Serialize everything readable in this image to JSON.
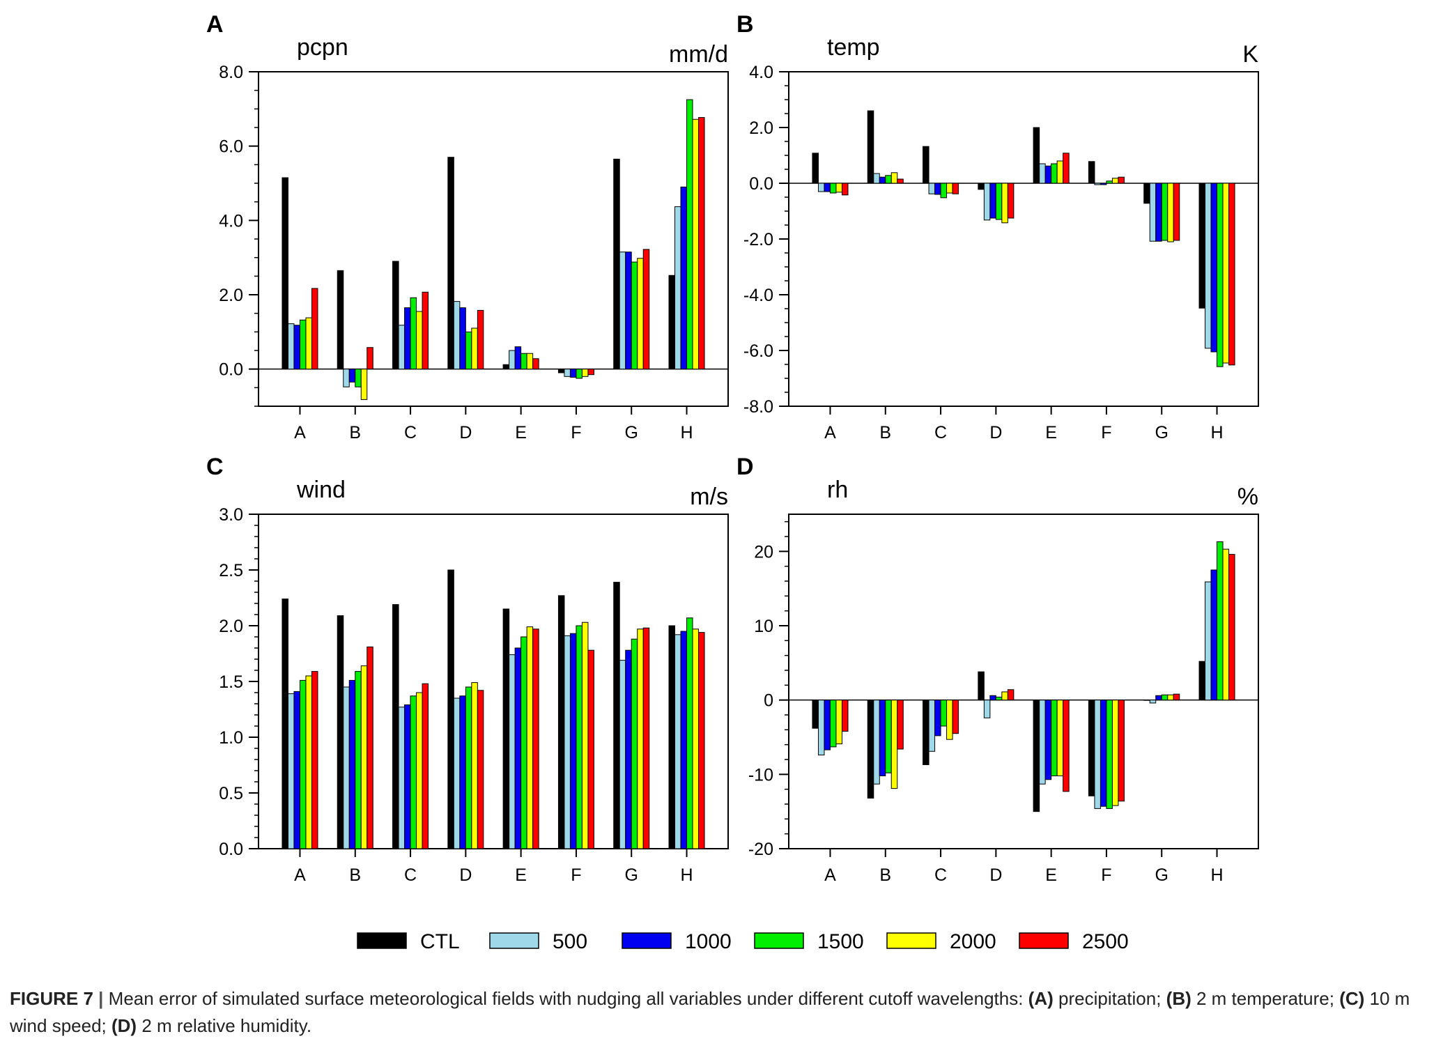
{
  "figure": {
    "caption": {
      "label": "FIGURE 7",
      "separator": "|",
      "text_1": "Mean error of simulated surface meteorological fields with nudging all variables under different cutoff wavelengths:",
      "ref_a": "(A)",
      "text_a": "precipitation;",
      "ref_b": "(B)",
      "text_b": "2 m temperature;",
      "ref_c": "(C)",
      "text_c": "10 m wind speed;",
      "ref_d": "(D)",
      "text_d": "2 m relative humidity."
    },
    "legend": {
      "position": "bottom-center",
      "entries": [
        {
          "name": "CTL",
          "color": "#000000"
        },
        {
          "name": "500",
          "color": "#9fd8e8"
        },
        {
          "name": "1000",
          "color": "#0000f0"
        },
        {
          "name": "1500",
          "color": "#00ee00"
        },
        {
          "name": "2000",
          "color": "#ffff00"
        },
        {
          "name": "2500",
          "color": "#ff0000"
        }
      ]
    }
  },
  "chart_data": [
    {
      "type": "bar",
      "panel_label": "A",
      "title": "pcpn",
      "unit": "mm/d",
      "ylim": [
        -1.0,
        8.0
      ],
      "yticks": [
        0.0,
        2.0,
        4.0,
        6.0,
        8.0
      ],
      "ytick_labels": [
        "0.0",
        "2.0",
        "4.0",
        "6.0",
        "8.0"
      ],
      "minor_step": 0.5,
      "categories": [
        "A",
        "B",
        "C",
        "D",
        "E",
        "F",
        "G",
        "H"
      ],
      "series": [
        {
          "name": "CTL",
          "values": [
            5.15,
            2.65,
            2.9,
            5.7,
            0.12,
            -0.1,
            5.65,
            2.52
          ]
        },
        {
          "name": "500",
          "values": [
            1.22,
            -0.48,
            1.18,
            1.82,
            0.5,
            -0.2,
            3.15,
            4.37
          ]
        },
        {
          "name": "1000",
          "values": [
            1.18,
            -0.35,
            1.65,
            1.65,
            0.6,
            -0.22,
            3.15,
            4.9
          ]
        },
        {
          "name": "1500",
          "values": [
            1.32,
            -0.48,
            1.92,
            1.0,
            0.42,
            -0.25,
            2.88,
            7.25
          ]
        },
        {
          "name": "2000",
          "values": [
            1.38,
            -0.82,
            1.55,
            1.1,
            0.42,
            -0.2,
            2.98,
            6.72
          ]
        },
        {
          "name": "2500",
          "values": [
            2.17,
            0.58,
            2.07,
            1.58,
            0.28,
            -0.15,
            3.22,
            6.77
          ]
        }
      ]
    },
    {
      "type": "bar",
      "panel_label": "B",
      "title": "temp",
      "unit": "K",
      "ylim": [
        -8.0,
        4.0
      ],
      "yticks": [
        -8.0,
        -6.0,
        -4.0,
        -2.0,
        0.0,
        2.0,
        4.0
      ],
      "ytick_labels": [
        "-8.0",
        "-6.0",
        "-4.0",
        "-2.0",
        "0.0",
        "2.0",
        "4.0"
      ],
      "minor_step": 0.5,
      "categories": [
        "A",
        "B",
        "C",
        "D",
        "E",
        "F",
        "G",
        "H"
      ],
      "series": [
        {
          "name": "CTL",
          "values": [
            1.08,
            2.6,
            1.32,
            -0.22,
            2.0,
            0.78,
            -0.72,
            -4.48
          ]
        },
        {
          "name": "500",
          "values": [
            -0.3,
            0.35,
            -0.38,
            -1.32,
            0.7,
            -0.05,
            -2.08,
            -5.92
          ]
        },
        {
          "name": "1000",
          "values": [
            -0.3,
            0.22,
            -0.4,
            -1.25,
            0.62,
            -0.05,
            -2.08,
            -6.05
          ]
        },
        {
          "name": "1500",
          "values": [
            -0.35,
            0.28,
            -0.52,
            -1.3,
            0.7,
            0.08,
            -2.05,
            -6.58
          ]
        },
        {
          "name": "2000",
          "values": [
            -0.32,
            0.38,
            -0.35,
            -1.42,
            0.8,
            0.18,
            -2.1,
            -6.45
          ]
        },
        {
          "name": "2500",
          "values": [
            -0.42,
            0.15,
            -0.38,
            -1.25,
            1.08,
            0.22,
            -2.05,
            -6.52
          ]
        }
      ]
    },
    {
      "type": "bar",
      "panel_label": "C",
      "title": "wind",
      "unit": "m/s",
      "ylim": [
        0.0,
        3.0
      ],
      "yticks": [
        0.0,
        0.5,
        1.0,
        1.5,
        2.0,
        2.5,
        3.0
      ],
      "ytick_labels": [
        "0.0",
        "0.5",
        "1.0",
        "1.5",
        "2.0",
        "2.5",
        "3.0"
      ],
      "minor_step": 0.1,
      "categories": [
        "A",
        "B",
        "C",
        "D",
        "E",
        "F",
        "G",
        "H"
      ],
      "series": [
        {
          "name": "CTL",
          "values": [
            2.24,
            2.09,
            2.19,
            2.5,
            2.15,
            2.27,
            2.39,
            2.0
          ]
        },
        {
          "name": "500",
          "values": [
            1.39,
            1.45,
            1.27,
            1.35,
            1.74,
            1.91,
            1.69,
            1.92
          ]
        },
        {
          "name": "1000",
          "values": [
            1.41,
            1.51,
            1.29,
            1.37,
            1.8,
            1.93,
            1.78,
            1.95
          ]
        },
        {
          "name": "1500",
          "values": [
            1.51,
            1.59,
            1.37,
            1.45,
            1.9,
            2.0,
            1.88,
            2.07
          ]
        },
        {
          "name": "2000",
          "values": [
            1.55,
            1.64,
            1.4,
            1.49,
            1.99,
            2.03,
            1.97,
            1.97
          ]
        },
        {
          "name": "2500",
          "values": [
            1.59,
            1.81,
            1.48,
            1.42,
            1.97,
            1.78,
            1.98,
            1.94
          ]
        }
      ]
    },
    {
      "type": "bar",
      "panel_label": "D",
      "title": "rh",
      "unit": "%",
      "ylim": [
        -20,
        25
      ],
      "yticks": [
        -20,
        -10,
        0,
        10,
        20
      ],
      "ytick_labels": [
        "-20",
        "-10",
        "0",
        "10",
        "20"
      ],
      "minor_step": 2,
      "categories": [
        "A",
        "B",
        "C",
        "D",
        "E",
        "F",
        "G",
        "H"
      ],
      "series": [
        {
          "name": "CTL",
          "values": [
            -3.8,
            -13.2,
            -8.7,
            3.8,
            -15.0,
            -12.9,
            0.0,
            5.2
          ]
        },
        {
          "name": "500",
          "values": [
            -7.4,
            -11.3,
            -6.9,
            -2.4,
            -11.3,
            -14.6,
            -0.4,
            15.9
          ]
        },
        {
          "name": "1000",
          "values": [
            -6.7,
            -10.2,
            -4.8,
            0.6,
            -10.7,
            -14.3,
            0.6,
            17.5
          ]
        },
        {
          "name": "1500",
          "values": [
            -6.3,
            -9.8,
            -3.5,
            0.4,
            -10.2,
            -14.6,
            0.7,
            21.3
          ]
        },
        {
          "name": "2000",
          "values": [
            -5.9,
            -11.9,
            -5.3,
            1.1,
            -10.2,
            -14.2,
            0.7,
            20.3
          ]
        },
        {
          "name": "2500",
          "values": [
            -4.2,
            -6.6,
            -4.5,
            1.4,
            -12.3,
            -13.6,
            0.8,
            19.6
          ]
        }
      ]
    }
  ]
}
